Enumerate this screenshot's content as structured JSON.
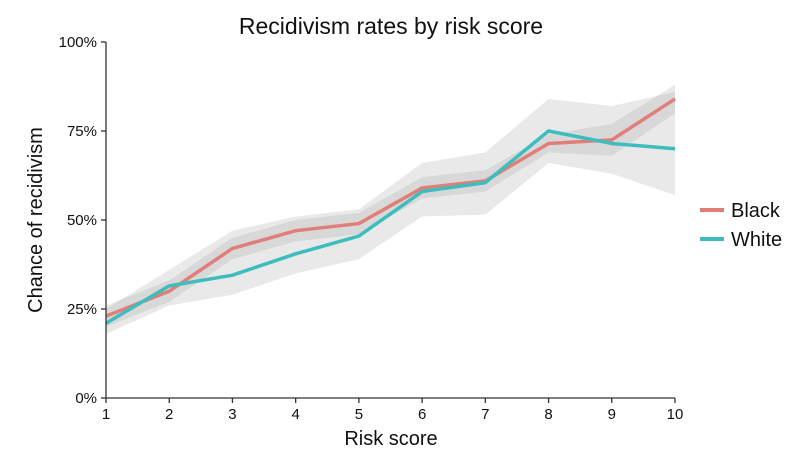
{
  "chart_data": {
    "type": "line",
    "title": "Recidivism rates by risk score",
    "xlabel": "Risk score",
    "ylabel": "Chance of recidivism",
    "x": [
      1,
      2,
      3,
      4,
      5,
      6,
      7,
      8,
      9,
      10
    ],
    "xlim": [
      1,
      10
    ],
    "ylim": [
      0,
      100
    ],
    "y_ticks": [
      0,
      25,
      50,
      75,
      100
    ],
    "y_tick_labels": [
      "0%",
      "25%",
      "50%",
      "75%",
      "100%"
    ],
    "x_tick_labels": [
      "1",
      "2",
      "3",
      "4",
      "5",
      "6",
      "7",
      "8",
      "9",
      "10"
    ],
    "grid": false,
    "legend_position": "right",
    "series": [
      {
        "name": "Black",
        "color": "#e07f7a",
        "values": [
          23,
          30,
          42,
          47,
          49,
          59,
          61,
          71.5,
          72.5,
          84
        ],
        "ci_low": [
          20,
          27,
          39,
          44,
          46,
          56,
          58,
          69,
          68,
          80
        ],
        "ci_high": [
          26,
          33,
          45,
          50,
          52,
          62,
          64,
          74,
          77,
          88
        ]
      },
      {
        "name": "White",
        "color": "#3dbdbd",
        "values": [
          21,
          31.5,
          34.5,
          40.5,
          45.5,
          58,
          60.5,
          75,
          71.5,
          70
        ],
        "ci_low": [
          18,
          26,
          29,
          35,
          39,
          51,
          51.5,
          66,
          63,
          57
        ],
        "ci_high": [
          25,
          36,
          47,
          51,
          53,
          66,
          69,
          84,
          82,
          86
        ]
      }
    ]
  }
}
